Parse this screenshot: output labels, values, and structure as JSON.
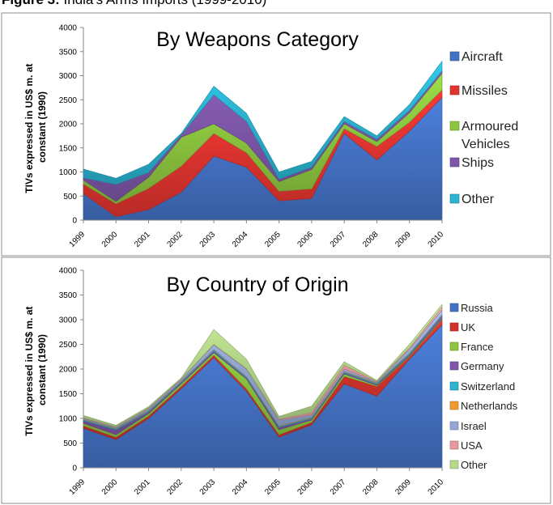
{
  "figure_title_bold": "Figure 3:",
  "figure_title_rest": " India's Arms Imports (1999-2010)",
  "chart_data": [
    {
      "type": "area",
      "stacked": true,
      "title": "By Weapons Category",
      "xlabel": "",
      "ylabel": "TIVs expressed in US$ m. at constant (1990)",
      "ylim": [
        0,
        4000
      ],
      "yticks": [
        "0",
        "500",
        "1000",
        "1500",
        "2000",
        "2500",
        "3000",
        "3500",
        "4000"
      ],
      "categories": [
        "1999",
        "2000",
        "2001",
        "2002",
        "2003",
        "2004",
        "2005",
        "2006",
        "2007",
        "2008",
        "2009",
        "2010"
      ],
      "series": [
        {
          "name": "Aircraft",
          "color": "#4472C4",
          "values": [
            550,
            70,
            220,
            580,
            1330,
            1100,
            400,
            450,
            1800,
            1250,
            1850,
            2550
          ]
        },
        {
          "name": "Missiles",
          "color": "#E0342F",
          "values": [
            200,
            270,
            440,
            540,
            470,
            300,
            200,
            200,
            100,
            280,
            180,
            150
          ]
        },
        {
          "name": "Armoured Vehicles",
          "color": "#8DC63F",
          "values": [
            80,
            50,
            230,
            600,
            200,
            200,
            200,
            400,
            100,
            100,
            200,
            350
          ]
        },
        {
          "name": "Ships",
          "color": "#7E57A8",
          "values": [
            50,
            350,
            100,
            50,
            600,
            450,
            50,
            50,
            50,
            50,
            50,
            50
          ]
        },
        {
          "name": "Other",
          "color": "#2BB5D3",
          "values": [
            180,
            130,
            170,
            30,
            180,
            170,
            150,
            120,
            100,
            70,
            120,
            200
          ]
        }
      ],
      "legend_position": "right"
    },
    {
      "type": "area",
      "stacked": true,
      "title": "By Country of Origin",
      "xlabel": "",
      "ylabel": "TIVs expressed in US$ m. at constant (1990)",
      "ylim": [
        0,
        4000
      ],
      "yticks": [
        "0",
        "500",
        "1000",
        "1500",
        "2000",
        "2500",
        "3000",
        "3500",
        "4000"
      ],
      "categories": [
        "1999",
        "2000",
        "2001",
        "2002",
        "2003",
        "2004",
        "2005",
        "2006",
        "2007",
        "2008",
        "2009",
        "2010"
      ],
      "series": [
        {
          "name": "Russia",
          "color": "#4472C4",
          "values": [
            800,
            570,
            1000,
            1600,
            2230,
            1550,
            620,
            870,
            1700,
            1450,
            2200,
            2900
          ]
        },
        {
          "name": "UK",
          "color": "#D0322C",
          "values": [
            50,
            50,
            50,
            50,
            50,
            50,
            50,
            50,
            150,
            200,
            50,
            100
          ]
        },
        {
          "name": "France",
          "color": "#8DC63F",
          "values": [
            50,
            50,
            50,
            50,
            50,
            200,
            100,
            50,
            50,
            20,
            20,
            20
          ]
        },
        {
          "name": "Germany",
          "color": "#7E57A8",
          "values": [
            50,
            100,
            30,
            20,
            30,
            20,
            50,
            20,
            20,
            20,
            20,
            50
          ]
        },
        {
          "name": "Switzerland",
          "color": "#2BB5D3",
          "values": [
            20,
            20,
            20,
            20,
            20,
            20,
            20,
            20,
            20,
            20,
            20,
            20
          ]
        },
        {
          "name": "Netherlands",
          "color": "#F39A2E",
          "values": [
            10,
            10,
            10,
            10,
            10,
            10,
            10,
            10,
            10,
            10,
            10,
            10
          ]
        },
        {
          "name": "Israel",
          "color": "#95A9D6",
          "values": [
            20,
            20,
            40,
            40,
            100,
            150,
            120,
            50,
            50,
            20,
            80,
            100
          ]
        },
        {
          "name": "USA",
          "color": "#E69AA0",
          "values": [
            10,
            10,
            10,
            10,
            10,
            10,
            20,
            50,
            80,
            10,
            30,
            60
          ]
        },
        {
          "name": "Other",
          "color": "#B5D88A",
          "values": [
            50,
            30,
            30,
            20,
            300,
            190,
            50,
            130,
            70,
            20,
            70,
            50
          ]
        }
      ],
      "legend_position": "right"
    }
  ]
}
